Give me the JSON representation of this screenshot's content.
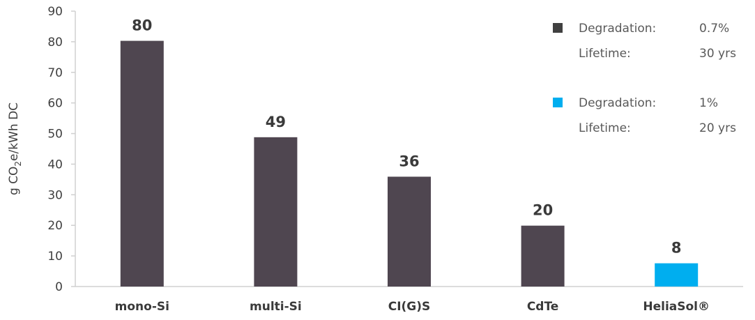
{
  "chart_data": {
    "type": "bar",
    "categories": [
      "mono-Si",
      "multi-Si",
      "CI(G)S",
      "CdTe",
      "HeliaSol®"
    ],
    "values": [
      80.3,
      48.8,
      35.9,
      19.9,
      7.6
    ],
    "data_labels": [
      "80",
      "49",
      "36",
      "20",
      "8"
    ],
    "bar_colors": [
      "#4f4650",
      "#4f4650",
      "#4f4650",
      "#4f4650",
      "#00aeef"
    ],
    "ylabel": {
      "prefix": "g CO",
      "subscript": "2",
      "suffix": "e/kWh DC"
    },
    "ylim": [
      0,
      90
    ],
    "yticks": [
      "0",
      "10",
      "20",
      "30",
      "40",
      "50",
      "60",
      "70",
      "80",
      "90"
    ],
    "grid": false,
    "legend_placement": "top-right",
    "legend": [
      {
        "color": "#404040",
        "label1": "Degradation:",
        "value1": "0.7%",
        "label2": "Lifetime:",
        "value2": "30 yrs"
      },
      {
        "color": "#00aeef",
        "label1": "Degradation:",
        "value1": "1%",
        "label2": "Lifetime:",
        "value2": "20 yrs"
      }
    ]
  }
}
